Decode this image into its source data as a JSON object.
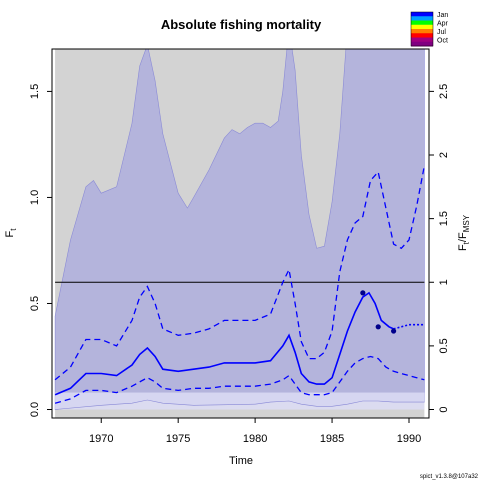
{
  "chart_data": {
    "type": "line",
    "title": "Absolute fishing mortality",
    "xlabel": "Time",
    "ylabel_left": "Ft",
    "ylabel_left_main": "F",
    "ylabel_left_sub": "t",
    "ylabel_right_f": "F",
    "ylabel_right_t": "t",
    "ylabel_right_slash": "/F",
    "ylabel_right_msy": "MSY",
    "footer": "spict_v1.3.8@107a32",
    "xlim": [
      1966.8,
      1991.3
    ],
    "ylim": [
      -0.04,
      1.7
    ],
    "ylim_right": [
      -0.0667,
      2.833
    ],
    "x_ticks": [
      1970,
      1975,
      1980,
      1985,
      1990
    ],
    "x_tick_labels": [
      "1970",
      "1975",
      "1980",
      "1985",
      "1990"
    ],
    "y_ticks": [
      0.0,
      0.5,
      1.0,
      1.5
    ],
    "y_tick_labels": [
      "0.0",
      "0.5",
      "1.0",
      "1.5"
    ],
    "y_right_ticks": [
      0,
      0.5,
      1,
      1.5,
      2,
      2.5
    ],
    "y_right_tick_labels": [
      "0",
      "0.5",
      "1",
      "1.5",
      "2",
      "2.5"
    ],
    "fmsy": 0.6,
    "series": [
      {
        "name": "F estimate",
        "x": [
          1967.0,
          1968.0,
          1969.0,
          1970.0,
          1971.0,
          1972.0,
          1972.5,
          1973.0,
          1973.5,
          1974.0,
          1975.0,
          1976.0,
          1977.0,
          1978.0,
          1979.0,
          1980.0,
          1981.0,
          1981.8,
          1982.2,
          1982.6,
          1983.0,
          1983.5,
          1984.0,
          1984.5,
          1985.0,
          1985.5,
          1986.0,
          1986.5,
          1987.0,
          1987.4,
          1987.8,
          1988.2,
          1988.7,
          1989.0
        ],
        "y": [
          0.07,
          0.1,
          0.17,
          0.17,
          0.16,
          0.21,
          0.26,
          0.29,
          0.25,
          0.19,
          0.18,
          0.19,
          0.2,
          0.22,
          0.22,
          0.22,
          0.23,
          0.3,
          0.35,
          0.27,
          0.17,
          0.13,
          0.12,
          0.12,
          0.15,
          0.26,
          0.37,
          0.46,
          0.53,
          0.55,
          0.5,
          0.42,
          0.39,
          0.38
        ]
      },
      {
        "name": "F forecast",
        "x": [
          1989.0,
          1989.5,
          1990.0,
          1990.5,
          1991.0
        ],
        "y": [
          0.38,
          0.39,
          0.4,
          0.4,
          0.4
        ]
      },
      {
        "name": "F upper CI",
        "x": [
          1967.0,
          1968.0,
          1969.0,
          1970.0,
          1971.0,
          1972.0,
          1972.5,
          1973.0,
          1973.5,
          1974.0,
          1975.0,
          1976.0,
          1977.0,
          1978.0,
          1979.0,
          1980.0,
          1981.0,
          1981.8,
          1982.2,
          1982.6,
          1983.0,
          1983.5,
          1984.0,
          1984.5,
          1985.0,
          1985.5,
          1986.0,
          1986.5,
          1987.0,
          1987.5,
          1988.0,
          1988.5,
          1989.0,
          1989.5,
          1990.0,
          1990.5,
          1991.0
        ],
        "y": [
          0.14,
          0.2,
          0.33,
          0.33,
          0.3,
          0.42,
          0.53,
          0.58,
          0.5,
          0.38,
          0.35,
          0.36,
          0.38,
          0.42,
          0.42,
          0.42,
          0.45,
          0.6,
          0.66,
          0.5,
          0.32,
          0.24,
          0.24,
          0.27,
          0.37,
          0.65,
          0.8,
          0.88,
          0.91,
          1.08,
          1.12,
          0.95,
          0.78,
          0.76,
          0.8,
          0.96,
          1.15
        ]
      },
      {
        "name": "F lower CI",
        "x": [
          1967.0,
          1968.0,
          1969.0,
          1970.0,
          1971.0,
          1972.0,
          1972.5,
          1973.0,
          1973.5,
          1974.0,
          1975.0,
          1976.0,
          1977.0,
          1978.0,
          1979.0,
          1980.0,
          1981.0,
          1981.8,
          1982.2,
          1982.6,
          1983.0,
          1983.5,
          1984.0,
          1984.5,
          1985.0,
          1985.5,
          1986.0,
          1986.5,
          1987.0,
          1987.5,
          1988.0,
          1988.5,
          1989.0,
          1989.5,
          1990.0,
          1990.5,
          1991.0
        ],
        "y": [
          0.03,
          0.05,
          0.09,
          0.09,
          0.08,
          0.11,
          0.13,
          0.15,
          0.13,
          0.1,
          0.09,
          0.1,
          0.1,
          0.11,
          0.11,
          0.11,
          0.12,
          0.14,
          0.16,
          0.12,
          0.08,
          0.07,
          0.07,
          0.07,
          0.08,
          0.13,
          0.18,
          0.22,
          0.24,
          0.25,
          0.24,
          0.2,
          0.18,
          0.17,
          0.16,
          0.15,
          0.14
        ]
      },
      {
        "name": "Outer band upper",
        "x": [
          1967.0,
          1968.0,
          1969.0,
          1969.5,
          1970.0,
          1971.0,
          1972.0,
          1972.5,
          1973.0,
          1973.5,
          1974.0,
          1975.0,
          1975.6,
          1976.0,
          1977.0,
          1978.0,
          1978.5,
          1979.0,
          1979.5,
          1980.0,
          1980.5,
          1981.0,
          1981.5,
          1981.8,
          1982.2,
          1982.6,
          1983.0,
          1983.5,
          1984.0,
          1984.5,
          1985.0,
          1985.5,
          1986.0,
          1991.0
        ],
        "y": [
          0.44,
          0.8,
          1.05,
          1.08,
          1.02,
          1.05,
          1.35,
          1.62,
          1.72,
          1.55,
          1.3,
          1.02,
          0.95,
          1.0,
          1.13,
          1.28,
          1.32,
          1.3,
          1.33,
          1.35,
          1.35,
          1.33,
          1.36,
          1.5,
          1.8,
          1.6,
          1.2,
          0.92,
          0.76,
          0.77,
          0.98,
          1.3,
          1.8,
          1.8
        ]
      },
      {
        "name": "Outer band lower",
        "x": [
          1967.0,
          1970.0,
          1972.0,
          1973.0,
          1974.0,
          1976.0,
          1980.0,
          1981.0,
          1982.2,
          1983.0,
          1984.0,
          1985.0,
          1986.0,
          1987.0,
          1988.0,
          1989.0,
          1990.0,
          1991.0
        ],
        "y": [
          0.0,
          0.02,
          0.03,
          0.045,
          0.03,
          0.02,
          0.025,
          0.035,
          0.04,
          0.025,
          0.015,
          0.015,
          0.025,
          0.04,
          0.04,
          0.035,
          0.035,
          0.035
        ]
      },
      {
        "name": "MSY band",
        "x": [
          1967.0,
          1991.0
        ],
        "y_low": [
          0.0,
          0.0
        ],
        "y_high": [
          0.08,
          0.08
        ]
      }
    ],
    "points": [
      {
        "x": 1987.0,
        "y": 0.55
      },
      {
        "x": 1988.0,
        "y": 0.39
      },
      {
        "x": 1989.0,
        "y": 0.37
      }
    ],
    "legend": {
      "placement": "top-right",
      "labels": [
        "Jan",
        "Apr",
        "Jul",
        "Oct"
      ],
      "colors": [
        "#0000ff",
        "#00a0ff",
        "#00ff00",
        "#ffff00",
        "#ff8000",
        "#ff0000",
        "#a00080",
        "#800080"
      ]
    },
    "colors": {
      "ci_fill": "#b4b4dc",
      "outer_fill": "#d3d3d3",
      "line": "#0000ff",
      "point": "#00008b",
      "fmsy_line": "#000000",
      "msy_band": "#dcdcf5"
    },
    "grid": false
  }
}
